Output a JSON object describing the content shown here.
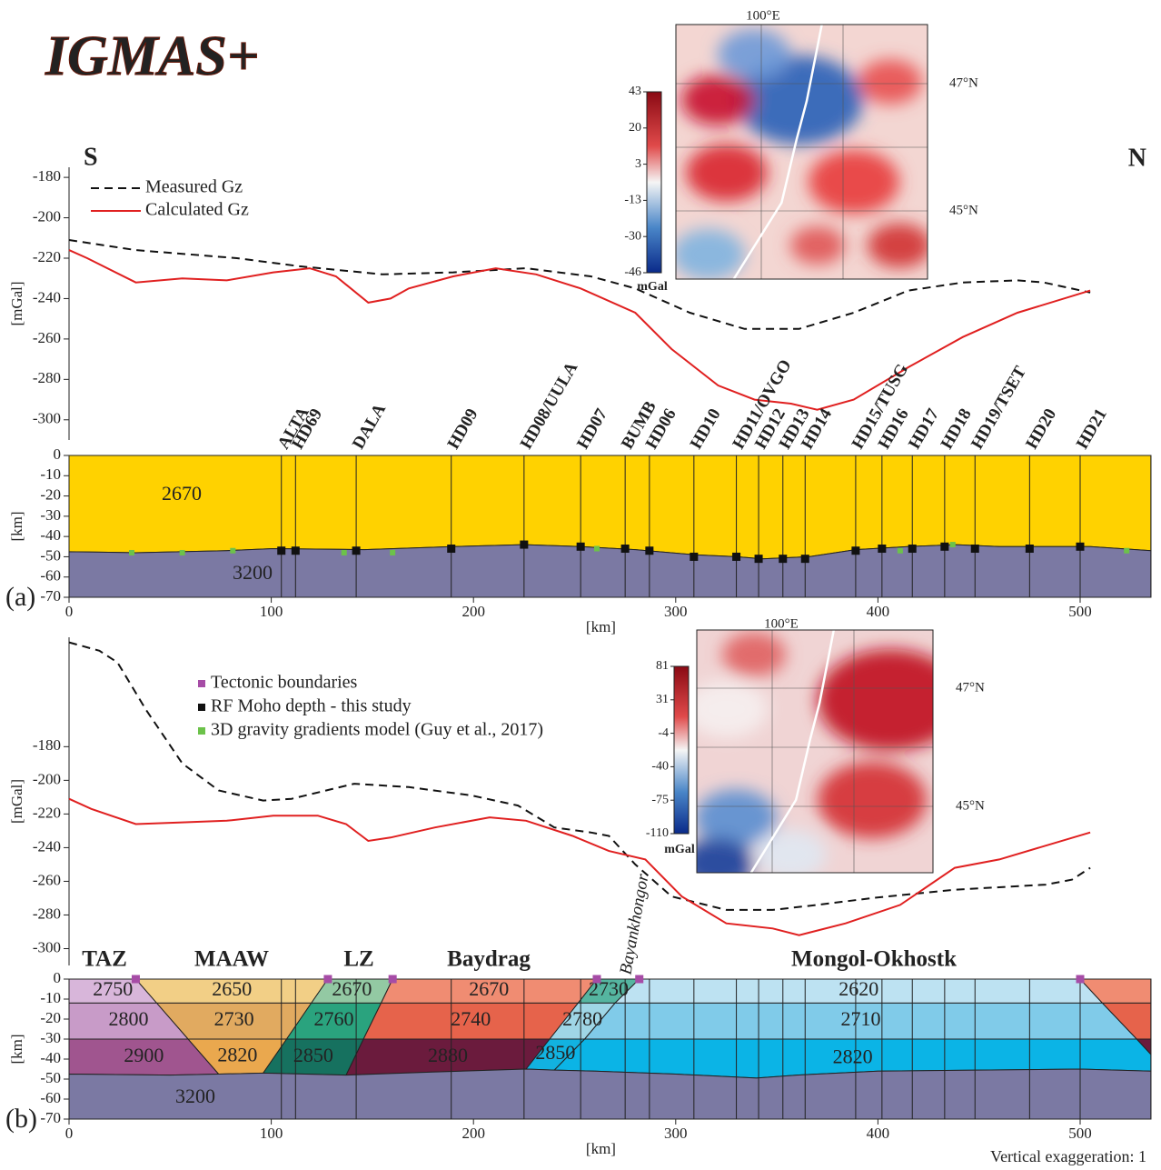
{
  "logo": "IGMAS+",
  "direction": {
    "south": "S",
    "north": "N"
  },
  "vertical_exaggeration": "Vertical exaggeration: 1",
  "chart_data": [
    {
      "type": "line",
      "panel": "a",
      "ylabel": "[mGal]",
      "xlim": [
        0,
        535
      ],
      "ylim": [
        -310,
        -175
      ],
      "yticks": [
        -180,
        -200,
        -220,
        -240,
        -260,
        -280,
        -300
      ],
      "series": [
        {
          "name": "Measured Gz",
          "color": "#111111",
          "style": "dashed",
          "x": [
            0,
            33,
            83,
            114,
            155,
            190,
            226,
            258,
            280,
            307,
            334,
            361,
            388,
            415,
            442,
            469,
            482,
            505
          ],
          "values": [
            -211,
            -216,
            -220,
            -224,
            -228,
            -227,
            -225,
            -229,
            -235,
            -247,
            -255,
            -255,
            -247,
            -236,
            -232,
            -231,
            -232,
            -237
          ]
        },
        {
          "name": "Calculated Gz",
          "color": "#e02020",
          "style": "solid",
          "x": [
            0,
            9,
            33,
            56,
            78,
            101,
            119,
            132,
            148,
            159,
            168,
            190,
            211,
            231,
            253,
            280,
            298,
            321,
            339,
            357,
            370,
            388,
            415,
            442,
            469,
            505
          ],
          "values": [
            -216,
            -220,
            -232,
            -230,
            -231,
            -227,
            -225,
            -229,
            -242,
            -240,
            -235,
            -229,
            -225,
            -228,
            -235,
            -247,
            -265,
            -283,
            -290,
            -292,
            -295,
            -290,
            -274,
            -259,
            -247,
            -236
          ]
        }
      ],
      "inset": {
        "lon_label": "100°E",
        "lat_labels": [
          "47°N",
          "45°N"
        ],
        "colorbar_ticks": [
          43,
          20,
          3,
          -13,
          -30,
          -46
        ],
        "colorbar_unit": "mGal"
      }
    },
    {
      "type": "section",
      "panel_label": "(a)",
      "xlabel": "[km]",
      "ylabel": "[km]",
      "xlim": [
        0,
        535
      ],
      "ylim": [
        -70,
        0
      ],
      "xticks": [
        0,
        100,
        200,
        300,
        400,
        500
      ],
      "yticks": [
        0,
        -10,
        -20,
        -30,
        -40,
        -50,
        -60,
        -70
      ],
      "stations": {
        "names": [
          "ALTA",
          "HD69",
          "DALA",
          "HD09",
          "HD08/UULA",
          "HD07",
          "BUMB",
          "HD06",
          "HD10",
          "HD11/OVGO",
          "HD12",
          "HD13",
          "HD14",
          "HD15/TUSG",
          "HD16",
          "HD17",
          "HD18",
          "HD19/TSET",
          "HD20",
          "HD21"
        ],
        "x": [
          105,
          112,
          142,
          189,
          225,
          253,
          275,
          287,
          309,
          330,
          341,
          353,
          364,
          389,
          402,
          417,
          433,
          448,
          475,
          500
        ]
      },
      "bodies": [
        {
          "label": "2670",
          "color": "#ffd200",
          "x": [
            0,
            535,
            535,
            505,
            460,
            438,
            415,
            389,
            366,
            343,
            330,
            309,
            280,
            253,
            225,
            190,
            146,
            101,
            78,
            33,
            0
          ],
          "y": [
            0,
            0,
            -47,
            -45,
            -45,
            -44,
            -45,
            -46.5,
            -50,
            -51,
            -50,
            -49,
            -46.5,
            -45,
            -44,
            -45,
            -46.5,
            -46,
            -47,
            -48,
            -47.5
          ]
        },
        {
          "label": "3200",
          "color": "#7b79a3",
          "x": [
            0,
            33,
            78,
            101,
            146,
            190,
            225,
            253,
            280,
            309,
            330,
            343,
            366,
            389,
            415,
            438,
            460,
            505,
            535,
            535,
            0
          ],
          "y": [
            -47.5,
            -48,
            -47,
            -46,
            -46.5,
            -45,
            -44,
            -45,
            -46.5,
            -49,
            -50,
            -51,
            -50,
            -46.5,
            -45,
            -44,
            -45,
            -45,
            -47,
            -70,
            -70
          ]
        }
      ],
      "markers": [
        {
          "name": "RF Moho depth - this study",
          "color": "#111111",
          "x": [
            105,
            112,
            142,
            189,
            225,
            253,
            275,
            287,
            309,
            330,
            341,
            353,
            364,
            389,
            402,
            417,
            433,
            448,
            475,
            500
          ],
          "values": [
            -47,
            -47,
            -47,
            -46,
            -44,
            -45,
            -46,
            -47,
            -50,
            -50,
            -51,
            -51,
            -51,
            -47,
            -46,
            -46,
            -45,
            -46,
            -46,
            -45
          ]
        },
        {
          "name": "3D gravity gradients model (Guy et al., 2017)",
          "color": "#6cc24a",
          "x": [
            31,
            56,
            81,
            136,
            160,
            261,
            411,
            437,
            523
          ],
          "values": [
            -48,
            -48,
            -47,
            -48,
            -48,
            -46,
            -47,
            -44,
            -47
          ]
        }
      ]
    },
    {
      "type": "line",
      "panel": "b",
      "ylabel": "[mGal]",
      "xlim": [
        0,
        535
      ],
      "ylim": [
        -310,
        -115
      ],
      "yticks": [
        -180,
        -200,
        -220,
        -240,
        -260,
        -280,
        -300
      ],
      "series": [
        {
          "color": "#111111",
          "style": "dashed",
          "x": [
            0,
            15,
            24,
            38,
            56,
            74,
            96,
            110,
            141,
            168,
            199,
            222,
            240,
            258,
            267,
            280,
            298,
            325,
            348,
            370,
            397,
            438,
            483,
            496,
            505
          ],
          "values": [
            -118,
            -123,
            -130,
            -158,
            -190,
            -206,
            -212,
            -211,
            -202,
            -204,
            -209,
            -215,
            -228,
            -231,
            -233,
            -250,
            -269,
            -277,
            -277,
            -274,
            -270,
            -265,
            -262,
            -259,
            -252
          ]
        },
        {
          "color": "#e02020",
          "style": "solid",
          "x": [
            0,
            11,
            33,
            56,
            78,
            101,
            123,
            137,
            148,
            159,
            181,
            208,
            226,
            249,
            267,
            285,
            303,
            325,
            348,
            361,
            384,
            411,
            438,
            460,
            505
          ],
          "values": [
            -211,
            -217,
            -226,
            -225,
            -224,
            -221,
            -221,
            -226,
            -236,
            -234,
            -228,
            -222,
            -224,
            -233,
            -242,
            -247,
            -269,
            -285,
            -288,
            -292,
            -285,
            -274,
            -252,
            -247,
            -231
          ]
        }
      ],
      "inset": {
        "lon_label": "100°E",
        "lat_labels": [
          "47°N",
          "45°N"
        ],
        "colorbar_ticks": [
          81,
          31,
          -4,
          -40,
          -75,
          -110
        ],
        "colorbar_unit": "mGal"
      }
    },
    {
      "type": "section",
      "panel_label": "(b)",
      "xlabel": "[km]",
      "ylabel": "[km]",
      "xlim": [
        0,
        535
      ],
      "ylim": [
        -70,
        0
      ],
      "xticks": [
        0,
        100,
        200,
        300,
        400,
        500
      ],
      "yticks": [
        0,
        -10,
        -20,
        -30,
        -40,
        -50,
        -60,
        -70
      ],
      "zones": [
        "TAZ",
        "MAAW",
        "LZ",
        "Baydrag",
        "Bayankhongor",
        "Mongol-Okhostk"
      ],
      "bodies": [
        {
          "label": "2750",
          "color": "#d8b6da",
          "x": [
            0,
            33,
            43.4,
            0
          ],
          "y": [
            0,
            0,
            -12,
            -12
          ]
        },
        {
          "label": "2800",
          "color": "#c89bc8",
          "x": [
            0,
            43.4,
            58.9,
            0
          ],
          "y": [
            -12,
            -12,
            -30,
            -30
          ]
        },
        {
          "label": "2900",
          "color": "#a0558f",
          "x": [
            0,
            58.9,
            74,
            50,
            0
          ],
          "y": [
            -30,
            -30,
            -47.5,
            -48,
            -47.5
          ]
        },
        {
          "label": "2650",
          "color": "#f2cf86",
          "x": [
            33,
            128,
            119.8,
            43.4
          ],
          "y": [
            0,
            0,
            -12,
            -12
          ]
        },
        {
          "label": "2730",
          "color": "#e1aa60",
          "x": [
            43.4,
            119.8,
            107.6,
            58.9
          ],
          "y": [
            -12,
            -12,
            -30,
            -30
          ]
        },
        {
          "label": "2820",
          "color": "#eaa84e",
          "x": [
            58.9,
            107.6,
            96,
            74
          ],
          "y": [
            -30,
            -30,
            -47,
            -47.5
          ]
        },
        {
          "label": "2670",
          "color": "#93c9a3",
          "x": [
            128,
            160,
            154.3,
            119.8
          ],
          "y": [
            0,
            0,
            -12,
            -12
          ]
        },
        {
          "label": "2760",
          "color": "#2aa37e",
          "x": [
            119.8,
            154.3,
            145.6,
            107.6
          ],
          "y": [
            -12,
            -12,
            -30,
            -30
          ]
        },
        {
          "label": "2850",
          "color": "#16715f",
          "x": [
            107.6,
            145.6,
            137,
            96
          ],
          "y": [
            -30,
            -30,
            -48,
            -47
          ]
        },
        {
          "label": "2670",
          "color": "#f08c72",
          "x": [
            160,
            261,
            251.7,
            154.3
          ],
          "y": [
            0,
            0,
            -12,
            -12
          ]
        },
        {
          "label": "2740",
          "color": "#e6634b",
          "x": [
            154.3,
            251.7,
            237.7,
            145.6
          ],
          "y": [
            -12,
            -12,
            -30,
            -30
          ]
        },
        {
          "label": "2880",
          "color": "#6b1b3d",
          "x": [
            145.6,
            237.7,
            226,
            180,
            137
          ],
          "y": [
            -30,
            -30,
            -45,
            -46.5,
            -48
          ]
        },
        {
          "label": "2730",
          "color": "#55b5a0",
          "x": [
            261,
            282,
            270,
            251.7
          ],
          "y": [
            0,
            0,
            -12,
            -12
          ]
        },
        {
          "label": "2780",
          "color": "#9fd6e6",
          "x": [
            251.7,
            270,
            255,
            237.7
          ],
          "y": [
            -12,
            -12,
            -30,
            -30
          ]
        },
        {
          "label": "2850",
          "color": "#12b2e0",
          "x": [
            237.7,
            255,
            240,
            226
          ],
          "y": [
            -30,
            -30,
            -45.5,
            -45
          ]
        },
        {
          "label": "2620",
          "color": "#bde2f2",
          "x": [
            282,
            500,
            511,
            270
          ],
          "y": [
            0,
            0,
            -12,
            -12
          ]
        },
        {
          "label": "2710",
          "color": "#80cbe9",
          "x": [
            270,
            511,
            528,
            255
          ],
          "y": [
            -12,
            -12,
            -30,
            -30
          ]
        },
        {
          "label": "2820",
          "color": "#0bb4e6",
          "x": [
            255,
            528,
            535,
            535,
            500,
            450,
            400,
            360,
            340,
            300,
            260,
            240
          ],
          "y": [
            -30,
            -30,
            -37.7,
            -46,
            -45,
            -45.5,
            -46,
            -48,
            -49.5,
            -47.5,
            -46,
            -45.5
          ]
        },
        {
          "label": null,
          "color": "#f08c72",
          "x": [
            500,
            535,
            535,
            511
          ],
          "y": [
            0,
            0,
            -12,
            -12
          ]
        },
        {
          "label": null,
          "color": "#e6634b",
          "x": [
            511,
            535,
            535,
            528
          ],
          "y": [
            -12,
            -12,
            -30,
            -30
          ]
        },
        {
          "label": null,
          "color": "#6b1b3d",
          "x": [
            528,
            535,
            535
          ],
          "y": [
            -30,
            -30,
            -37.7
          ]
        },
        {
          "label": "3200",
          "color": "#7b79a3",
          "x": [
            0,
            50,
            74,
            96,
            137,
            180,
            226,
            240,
            260,
            300,
            340,
            360,
            400,
            450,
            500,
            535,
            535,
            0
          ],
          "y": [
            -47.5,
            -48,
            -47.5,
            -47,
            -48,
            -46.5,
            -45,
            -45.5,
            -46,
            -47.5,
            -49.5,
            -48,
            -46,
            -45.5,
            -45,
            -46,
            -70,
            -70
          ]
        }
      ],
      "markers": [
        {
          "name": "Tectonic boundaries",
          "color": "#a64ca6",
          "x": [
            33,
            128,
            160,
            261,
            282,
            500
          ],
          "values": [
            0,
            0,
            0,
            0,
            0,
            0
          ]
        }
      ]
    }
  ]
}
